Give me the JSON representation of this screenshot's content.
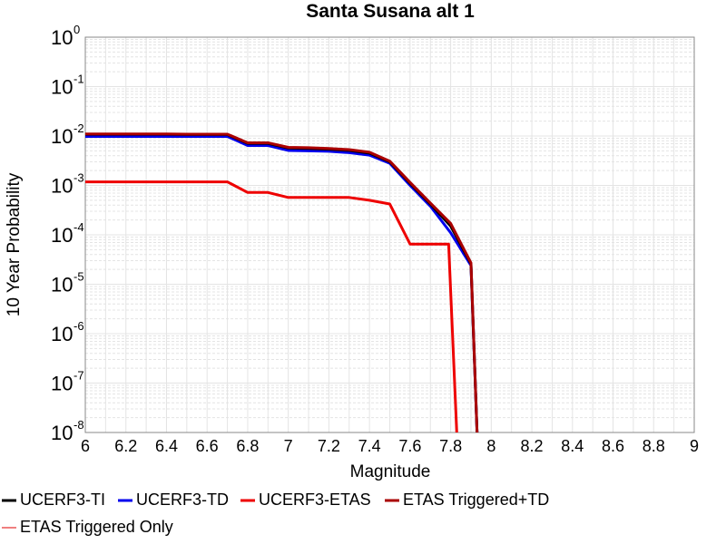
{
  "chart_data": {
    "type": "line",
    "title": "Santa Susana alt 1",
    "xlabel": "Magnitude",
    "ylabel": "10 Year Probability",
    "xlim": [
      6,
      9
    ],
    "ylim": [
      1e-08,
      1
    ],
    "y_scale": "log",
    "grid": true,
    "legend_position": "bottom",
    "x_ticks": [
      6,
      6.2,
      6.4,
      6.6,
      6.8,
      7,
      7.2,
      7.4,
      7.6,
      7.8,
      8,
      8.2,
      8.4,
      8.6,
      8.8,
      9
    ],
    "x_tick_labels": [
      "6",
      "6.2",
      "6.4",
      "6.6",
      "6.8",
      "7",
      "7.2",
      "7.4",
      "7.6",
      "7.8",
      "8",
      "8.2",
      "8.4",
      "8.6",
      "8.8",
      "9"
    ],
    "y_ticks": [
      {
        "value": 1e-08,
        "base": "10",
        "exp": "-8"
      },
      {
        "value": 1e-07,
        "base": "10",
        "exp": "-7"
      },
      {
        "value": 1e-06,
        "base": "10",
        "exp": "-6"
      },
      {
        "value": 1e-05,
        "base": "10",
        "exp": "-5"
      },
      {
        "value": 0.0001,
        "base": "10",
        "exp": "-4"
      },
      {
        "value": 0.001,
        "base": "10",
        "exp": "-3"
      },
      {
        "value": 0.01,
        "base": "10",
        "exp": "-2"
      },
      {
        "value": 0.1,
        "base": "10",
        "exp": "-1"
      },
      {
        "value": 1,
        "base": "10",
        "exp": "0"
      }
    ],
    "series": [
      {
        "name": "UCERF3-TI",
        "color": "#000000",
        "x": [
          6,
          6.1,
          6.2,
          6.3,
          6.4,
          6.5,
          6.6,
          6.7,
          6.8,
          6.9,
          7.0,
          7.1,
          7.2,
          7.3,
          7.4,
          7.5,
          7.6,
          7.7,
          7.8,
          7.9,
          7.93
        ],
        "y": [
          0.0108,
          0.0108,
          0.0108,
          0.0108,
          0.0108,
          0.0107,
          0.0107,
          0.0107,
          0.0071,
          0.0071,
          0.0057,
          0.0056,
          0.0054,
          0.0051,
          0.0045,
          0.003,
          0.0011,
          0.00042,
          0.00015,
          2.6e-05,
          1e-08
        ]
      },
      {
        "name": "UCERF3-TD",
        "color": "#0000ee",
        "x": [
          6,
          6.1,
          6.2,
          6.3,
          6.4,
          6.5,
          6.6,
          6.7,
          6.8,
          6.9,
          7.0,
          7.1,
          7.2,
          7.3,
          7.4,
          7.5,
          7.6,
          7.7,
          7.8,
          7.9,
          7.93
        ],
        "y": [
          0.0098,
          0.0098,
          0.0098,
          0.0098,
          0.0098,
          0.0098,
          0.0098,
          0.0098,
          0.0064,
          0.0064,
          0.0051,
          0.005,
          0.0049,
          0.0046,
          0.0041,
          0.0028,
          0.001,
          0.00038,
          0.00011,
          2.4e-05,
          1e-08
        ]
      },
      {
        "name": "UCERF3-ETAS",
        "color": "#ee0000",
        "x": [
          6,
          6.1,
          6.2,
          6.3,
          6.4,
          6.5,
          6.6,
          6.7,
          6.8,
          6.9,
          7.0,
          7.1,
          7.2,
          7.3,
          7.4,
          7.5,
          7.6,
          7.7,
          7.79,
          7.83
        ],
        "y": [
          0.00118,
          0.00118,
          0.00118,
          0.00118,
          0.00118,
          0.00118,
          0.00118,
          0.00118,
          0.00072,
          0.00072,
          0.00057,
          0.00057,
          0.00057,
          0.00057,
          0.0005,
          0.00042,
          6.5e-05,
          6.5e-05,
          6.5e-05,
          1e-08
        ]
      },
      {
        "name": "ETAS Triggered+TD",
        "color": "#aa0000",
        "x": [
          6,
          6.1,
          6.2,
          6.3,
          6.4,
          6.5,
          6.6,
          6.7,
          6.8,
          6.9,
          7.0,
          7.1,
          7.2,
          7.3,
          7.4,
          7.5,
          7.6,
          7.7,
          7.8,
          7.9,
          7.93
        ],
        "y": [
          0.011,
          0.011,
          0.011,
          0.011,
          0.011,
          0.0109,
          0.0109,
          0.0109,
          0.0073,
          0.0073,
          0.0059,
          0.0058,
          0.0056,
          0.0053,
          0.0047,
          0.0031,
          0.00115,
          0.00044,
          0.00017,
          2.7e-05,
          1e-08
        ]
      },
      {
        "name": "ETAS Triggered Only",
        "color": "#f08080",
        "x": [],
        "y": []
      }
    ]
  }
}
